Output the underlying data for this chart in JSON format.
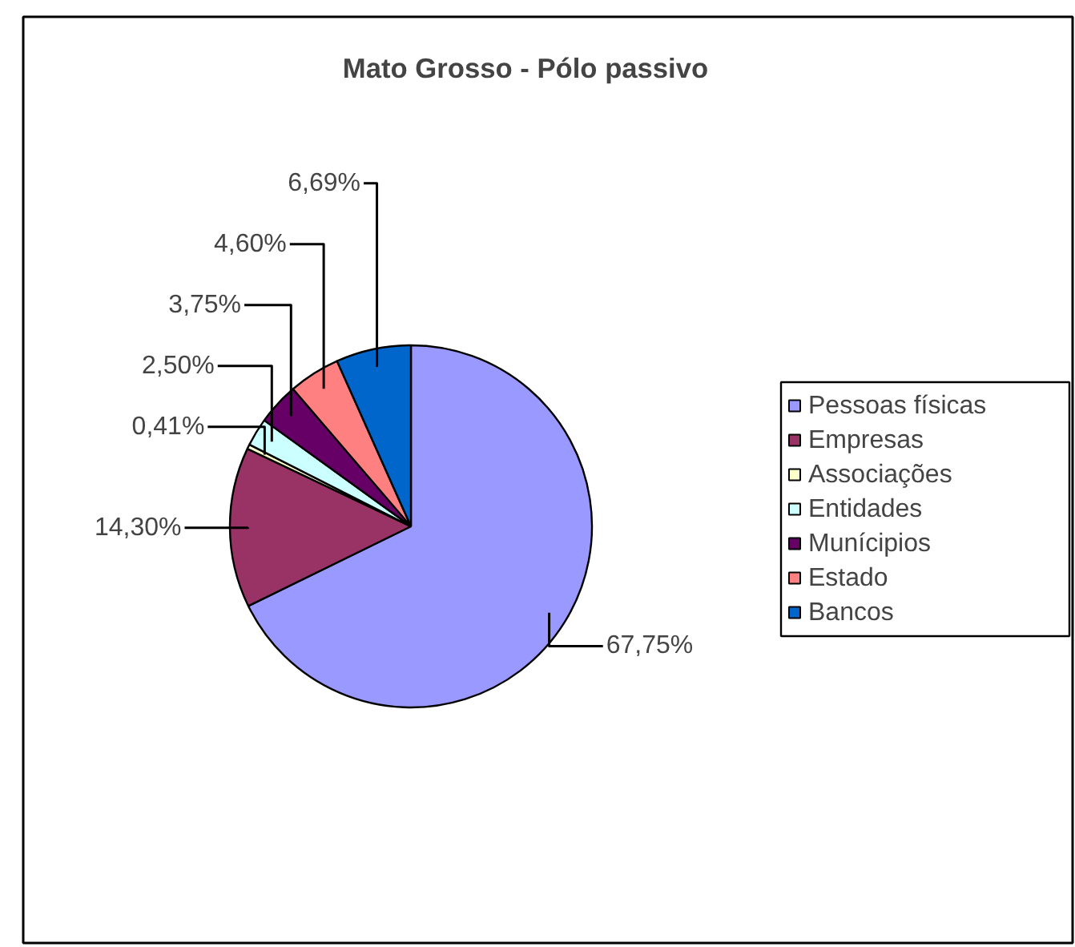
{
  "chart_data": {
    "type": "pie",
    "title": "Mato Grosso - Pólo passivo",
    "categories": [
      "Pessoas físicas",
      "Empresas",
      "Associações",
      "Entidades",
      "Munícipios",
      "Estado",
      "Bancos"
    ],
    "values": [
      67.75,
      14.3,
      0.41,
      2.5,
      3.75,
      4.6,
      6.69
    ],
    "value_labels": [
      "67,75%",
      "14,30%",
      "0,41%",
      "2,50%",
      "3,75%",
      "4,60%",
      "6,69%"
    ],
    "colors": [
      "#9999ff",
      "#993366",
      "#ffffcc",
      "#ccffff",
      "#660066",
      "#ff8080",
      "#0066cc"
    ],
    "legend": "right"
  }
}
